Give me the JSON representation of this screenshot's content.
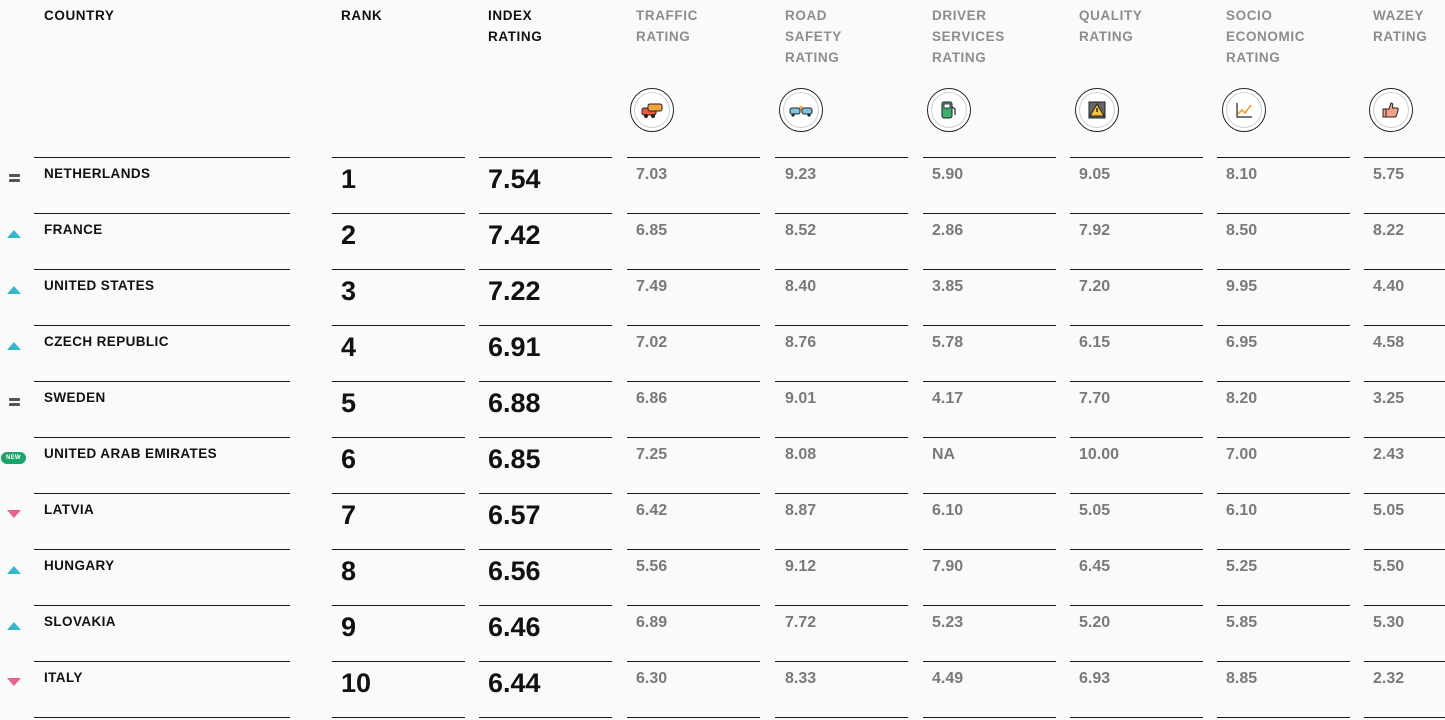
{
  "columns": [
    {
      "key": "country",
      "label": "COUNTRY"
    },
    {
      "key": "rank",
      "label": "RANK"
    },
    {
      "key": "index",
      "label": "INDEX RATING"
    },
    {
      "key": "traffic",
      "label": "TRAFFIC RATING",
      "icon": "traffic-jam-icon"
    },
    {
      "key": "road_safety",
      "label": "ROAD SAFETY RATING",
      "icon": "car-crash-icon"
    },
    {
      "key": "driver_services",
      "label": "DRIVER SERVICES RATING",
      "icon": "fuel-pump-icon"
    },
    {
      "key": "quality",
      "label": "QUALITY RATING",
      "icon": "road-warning-icon"
    },
    {
      "key": "socio",
      "label": "SOCIO ECONOMIC RATING",
      "icon": "trend-chart-icon"
    },
    {
      "key": "wazey",
      "label": "WAZEY RATING",
      "icon": "thumbs-up-icon"
    }
  ],
  "trend_colors": {
    "up": "#3bb4cc",
    "down": "#e8628c",
    "same": "#555555",
    "new": "#1aa46a"
  },
  "new_badge_label": "NEW",
  "rows": [
    {
      "trend": "same",
      "country": "NETHERLANDS",
      "rank": "1",
      "index": "7.54",
      "traffic": "7.03",
      "road_safety": "9.23",
      "driver_services": "5.90",
      "quality": "9.05",
      "socio": "8.10",
      "wazey": "5.75"
    },
    {
      "trend": "up",
      "country": "FRANCE",
      "rank": "2",
      "index": "7.42",
      "traffic": "6.85",
      "road_safety": "8.52",
      "driver_services": "2.86",
      "quality": "7.92",
      "socio": "8.50",
      "wazey": "8.22"
    },
    {
      "trend": "up",
      "country": "UNITED STATES",
      "rank": "3",
      "index": "7.22",
      "traffic": "7.49",
      "road_safety": "8.40",
      "driver_services": "3.85",
      "quality": "7.20",
      "socio": "9.95",
      "wazey": "4.40"
    },
    {
      "trend": "up",
      "country": "CZECH REPUBLIC",
      "rank": "4",
      "index": "6.91",
      "traffic": "7.02",
      "road_safety": "8.76",
      "driver_services": "5.78",
      "quality": "6.15",
      "socio": "6.95",
      "wazey": "4.58"
    },
    {
      "trend": "same",
      "country": "SWEDEN",
      "rank": "5",
      "index": "6.88",
      "traffic": "6.86",
      "road_safety": "9.01",
      "driver_services": "4.17",
      "quality": "7.70",
      "socio": "8.20",
      "wazey": "3.25"
    },
    {
      "trend": "new",
      "country": "UNITED ARAB EMIRATES",
      "rank": "6",
      "index": "6.85",
      "traffic": "7.25",
      "road_safety": "8.08",
      "driver_services": "NA",
      "quality": "10.00",
      "socio": "7.00",
      "wazey": "2.43"
    },
    {
      "trend": "down",
      "country": "LATVIA",
      "rank": "7",
      "index": "6.57",
      "traffic": "6.42",
      "road_safety": "8.87",
      "driver_services": "6.10",
      "quality": "5.05",
      "socio": "6.10",
      "wazey": "5.05"
    },
    {
      "trend": "up",
      "country": "HUNGARY",
      "rank": "8",
      "index": "6.56",
      "traffic": "5.56",
      "road_safety": "9.12",
      "driver_services": "7.90",
      "quality": "6.45",
      "socio": "5.25",
      "wazey": "5.50"
    },
    {
      "trend": "up",
      "country": "SLOVAKIA",
      "rank": "9",
      "index": "6.46",
      "traffic": "6.89",
      "road_safety": "7.72",
      "driver_services": "5.23",
      "quality": "5.20",
      "socio": "5.85",
      "wazey": "5.30"
    },
    {
      "trend": "down",
      "country": "ITALY",
      "rank": "10",
      "index": "6.44",
      "traffic": "6.30",
      "road_safety": "8.33",
      "driver_services": "4.49",
      "quality": "6.93",
      "socio": "8.85",
      "wazey": "2.32"
    }
  ]
}
